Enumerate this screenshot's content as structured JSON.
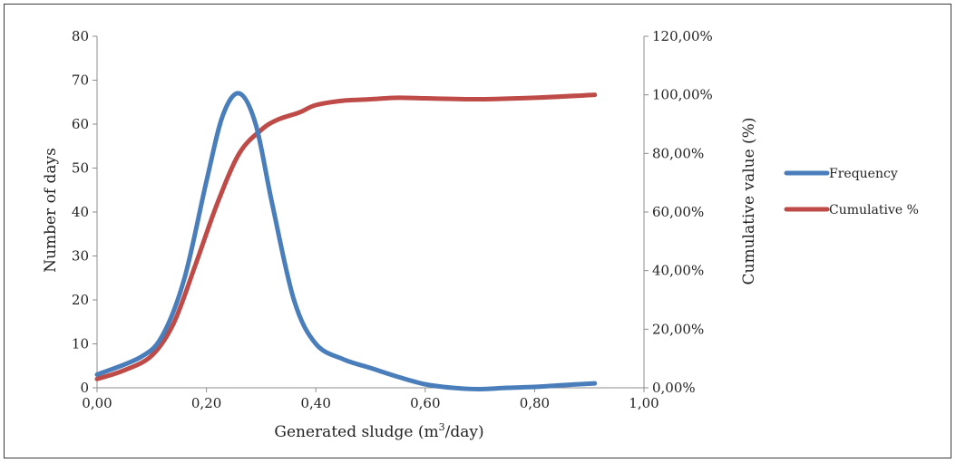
{
  "chart_data": {
    "type": "line",
    "xlabel": "Generated sludge (m",
    "xlabel_sup": "3",
    "xlabel_tail": "/day)",
    "ylabel": "Number of days",
    "y2label": "Cumulative value (%)",
    "xlim": [
      0,
      1
    ],
    "ylim": [
      0,
      80
    ],
    "y2lim": [
      0,
      1.2
    ],
    "x_ticks": [
      "0,00",
      "0,20",
      "0,40",
      "0,60",
      "0,80",
      "1,00"
    ],
    "y_ticks": [
      "0",
      "10",
      "20",
      "30",
      "40",
      "50",
      "60",
      "70",
      "80"
    ],
    "y2_ticks": [
      "0,00%",
      "20,00%",
      "40,00%",
      "60,00%",
      "80,00%",
      "100,00%",
      "120,00%"
    ],
    "grid": false,
    "legend_position": "right",
    "series": [
      {
        "name": "Frequency",
        "axis": "left",
        "color": "#4a7ebb",
        "x": [
          0.0,
          0.08,
          0.12,
          0.16,
          0.2,
          0.23,
          0.26,
          0.29,
          0.32,
          0.36,
          0.4,
          0.45,
          0.5,
          0.55,
          0.6,
          0.65,
          0.7,
          0.75,
          0.8,
          0.85,
          0.91
        ],
        "y": [
          3,
          7,
          12,
          25,
          47,
          62,
          67,
          60,
          42,
          20,
          10,
          6.5,
          4.5,
          2.5,
          0.8,
          0,
          -0.3,
          0,
          0.2,
          0.6,
          1
        ]
      },
      {
        "name": "Cumulative %",
        "axis": "right",
        "color": "#be4b48",
        "x": [
          0.0,
          0.05,
          0.1,
          0.14,
          0.18,
          0.22,
          0.26,
          0.3,
          0.33,
          0.37,
          0.4,
          0.45,
          0.5,
          0.55,
          0.6,
          0.7,
          0.8,
          0.91
        ],
        "y": [
          0.03,
          0.06,
          0.11,
          0.22,
          0.42,
          0.63,
          0.8,
          0.88,
          0.915,
          0.94,
          0.965,
          0.98,
          0.985,
          0.99,
          0.988,
          0.985,
          0.99,
          1.0
        ]
      }
    ]
  }
}
